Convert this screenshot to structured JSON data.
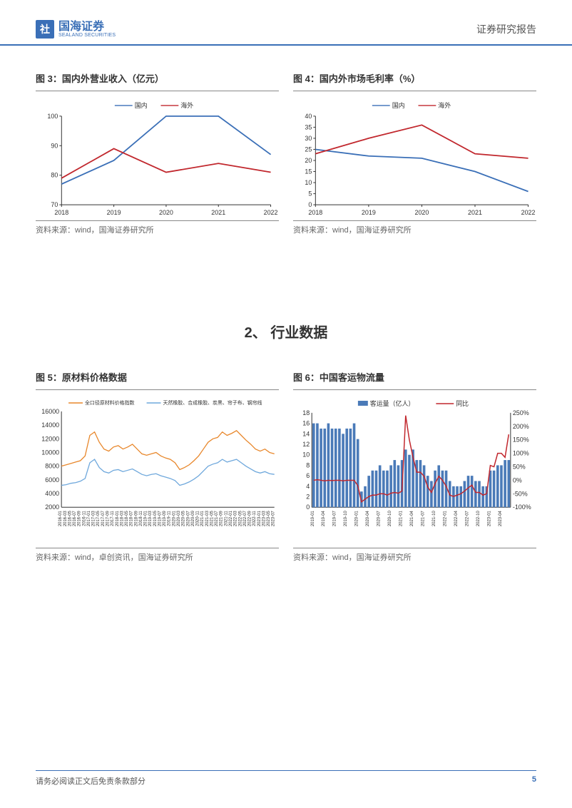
{
  "header": {
    "logo_cn": "国海证券",
    "logo_en": "SEALAND SECURITIES",
    "doc_title": "证券研究报告"
  },
  "chart3": {
    "title": "图 3：国内外营业收入（亿元）",
    "type": "line",
    "categories": [
      "2018",
      "2019",
      "2020",
      "2021",
      "2022"
    ],
    "series": [
      {
        "name": "国内",
        "color": "#3a6fb7",
        "values": [
          77,
          85,
          100,
          100,
          87
        ]
      },
      {
        "name": "海外",
        "color": "#c1272d",
        "values": [
          79,
          89,
          81,
          84,
          81
        ]
      }
    ],
    "ylim": [
      70,
      100
    ],
    "ytick_step": 10,
    "source": "资料来源：wind，国海证券研究所"
  },
  "chart4": {
    "title": "图 4：国内外市场毛利率（%）",
    "type": "line",
    "categories": [
      "2018",
      "2019",
      "2020",
      "2021",
      "2022"
    ],
    "series": [
      {
        "name": "国内",
        "color": "#3a6fb7",
        "values": [
          25,
          22,
          21,
          15,
          6
        ]
      },
      {
        "name": "海外",
        "color": "#c1272d",
        "values": [
          23,
          30,
          36,
          23,
          21
        ]
      }
    ],
    "ylim": [
      0,
      40
    ],
    "ytick_step": 5,
    "source": "资料来源：wind，国海证券研究所"
  },
  "section_heading": "2、 行业数据",
  "chart5": {
    "title": "图 5：原材料价格数据",
    "type": "line",
    "legend": [
      {
        "name": "全口径原材料价格指数",
        "color": "#e8872b"
      },
      {
        "name": "天然橡胶、合成橡胶、炭黑、帘子布、钢帘线",
        "color": "#6fa8dc"
      }
    ],
    "ylim": [
      2000,
      16000
    ],
    "ytick_step": 2000,
    "xlabels": [
      "2016-01",
      "2016-03",
      "2016-05",
      "2016-07",
      "2016-09",
      "2016-11",
      "2017-01",
      "2017-03",
      "2017-05",
      "2017-07",
      "2017-09",
      "2017-11",
      "2018-01",
      "2018-03",
      "2018-05",
      "2018-07",
      "2018-09",
      "2018-11",
      "2019-01",
      "2019-03",
      "2019-05",
      "2019-07",
      "2019-09",
      "2019-11",
      "2020-01",
      "2020-03",
      "2020-05",
      "2020-07",
      "2020-09",
      "2020-11",
      "2021-01",
      "2021-03",
      "2021-05",
      "2021-07",
      "2021-09",
      "2021-11",
      "2022-01",
      "2022-03",
      "2022-05",
      "2022-07",
      "2022-09",
      "2022-11",
      "2023-01",
      "2023-03",
      "2023-05",
      "2023-07"
    ],
    "series1_values": [
      8000,
      8200,
      8400,
      8600,
      8800,
      9500,
      12500,
      13000,
      11500,
      10500,
      10200,
      10800,
      11000,
      10500,
      10800,
      11200,
      10500,
      9800,
      9600,
      9800,
      10000,
      9500,
      9200,
      9000,
      8500,
      7500,
      7800,
      8200,
      8800,
      9500,
      10500,
      11500,
      12000,
      12200,
      13000,
      12500,
      12800,
      13200,
      12500,
      11800,
      11200,
      10500,
      10200,
      10500,
      10000,
      9800
    ],
    "series2_values": [
      5200,
      5300,
      5500,
      5600,
      5800,
      6200,
      8500,
      9000,
      7800,
      7200,
      7000,
      7400,
      7500,
      7200,
      7400,
      7600,
      7200,
      6800,
      6600,
      6800,
      6900,
      6600,
      6400,
      6200,
      5900,
      5200,
      5400,
      5700,
      6100,
      6600,
      7300,
      8000,
      8300,
      8500,
      9000,
      8600,
      8800,
      9000,
      8500,
      8000,
      7600,
      7200,
      7000,
      7200,
      6900,
      6800
    ],
    "source": "资料来源：wind，卓创资讯，国海证券研究所"
  },
  "chart6": {
    "title": "图 6：中国客运物流量",
    "type": "combo",
    "legend": [
      {
        "name": "客运量（亿人）",
        "color": "#4a7ab8",
        "type": "bar"
      },
      {
        "name": "同比",
        "color": "#c1272d",
        "type": "line"
      }
    ],
    "ylim_left": [
      0,
      18
    ],
    "ytick_left": 2,
    "ylim_right": [
      -100,
      250
    ],
    "ytick_right": 50,
    "xlabels": [
      "2019-01",
      "2019-04",
      "2019-07",
      "2019-10",
      "2020-01",
      "2020-04",
      "2020-07",
      "2020-10",
      "2021-01",
      "2021-04",
      "2021-07",
      "2021-10",
      "2022-01",
      "2022-04",
      "2022-07",
      "2022-10",
      "2023-01",
      "2023-04"
    ],
    "bar_values": [
      16,
      16,
      15,
      15,
      16,
      15,
      15,
      15,
      14,
      15,
      15,
      16,
      13,
      3,
      4,
      6,
      7,
      7,
      8,
      7,
      7,
      8,
      9,
      8,
      9,
      11,
      10,
      11,
      9,
      9,
      8,
      6,
      5,
      7,
      8,
      7,
      7,
      5,
      4,
      4,
      4,
      5,
      6,
      6,
      5,
      5,
      4,
      4,
      7,
      7,
      8,
      8,
      9,
      9
    ],
    "line_values": [
      0,
      2,
      0,
      -2,
      0,
      -1,
      0,
      0,
      -2,
      0,
      0,
      0,
      -20,
      -80,
      -70,
      -60,
      -55,
      -55,
      -50,
      -50,
      -55,
      -48,
      -45,
      -48,
      -40,
      240,
      150,
      85,
      30,
      30,
      15,
      -25,
      -45,
      -12,
      15,
      0,
      -22,
      -55,
      -60,
      -55,
      -50,
      -40,
      -28,
      -18,
      -45,
      -45,
      -55,
      -50,
      55,
      50,
      100,
      100,
      85,
      170
    ],
    "source": "资料来源：wind，国海证券研究所"
  },
  "footer": {
    "disclaimer": "请务必阅读正文后免责条款部分",
    "page": "5"
  }
}
